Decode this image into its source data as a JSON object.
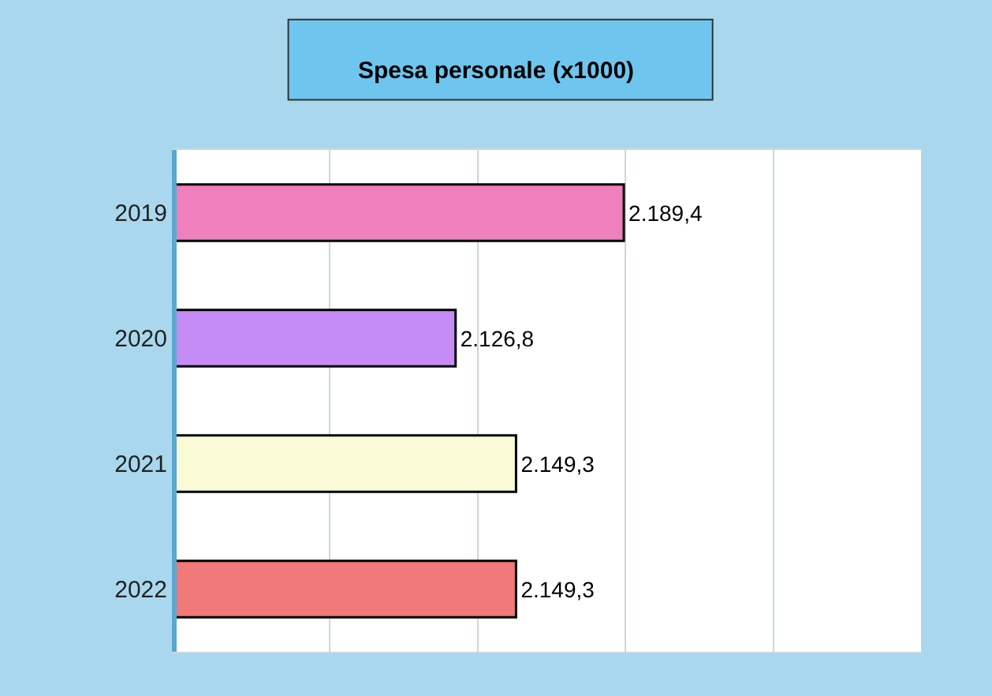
{
  "chart_data": {
    "type": "bar",
    "title": "Spesa personale (x1000)",
    "orientation": "horizontal",
    "categories": [
      "2019",
      "2020",
      "2021",
      "2022"
    ],
    "values": [
      2189.4,
      2126.8,
      2149.3,
      2149.3
    ],
    "colors": [
      "#f07fbe",
      "#c48cf4",
      "#fbfad6",
      "#f27979"
    ],
    "value_labels": [
      "2.189,4",
      "2.126,8",
      "2.149,3",
      "2.149,3"
    ],
    "xlim": [
      2023,
      2300
    ],
    "xticks": [
      {
        "value": 2080,
        "label": null
      },
      {
        "value": 2135,
        "label": null
      },
      {
        "value": 2190,
        "label": null
      },
      {
        "value": 2245,
        "label": null
      }
    ],
    "grid": "x"
  }
}
